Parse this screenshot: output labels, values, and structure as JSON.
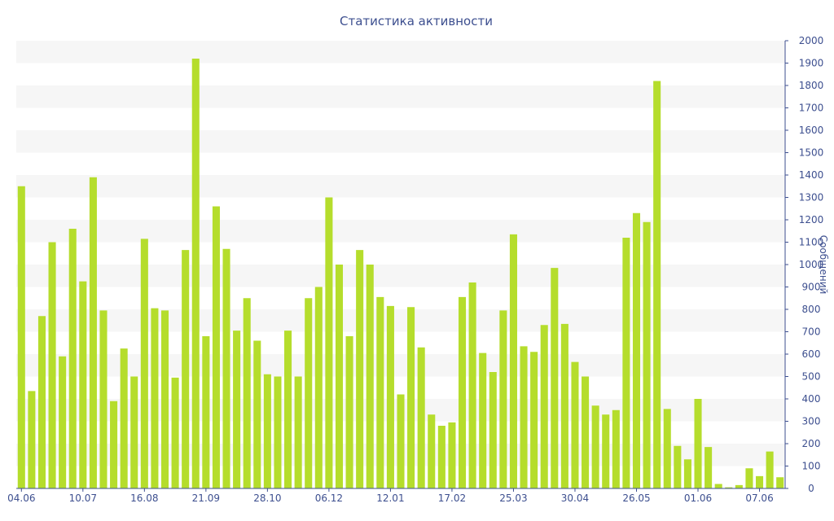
{
  "colors": {
    "bar": "#b5dd2c",
    "band": "#f6f6f6",
    "axis": "#3d4f8f",
    "text": "#3d4f8f"
  },
  "chart_data": {
    "type": "bar",
    "title": "Статистика активности",
    "xlabel": "",
    "ylabel": "Сообщений",
    "ylim": [
      0,
      2000
    ],
    "y_ticks": [
      0,
      100,
      200,
      300,
      400,
      500,
      600,
      700,
      800,
      900,
      1000,
      1100,
      1200,
      1300,
      1400,
      1500,
      1600,
      1700,
      1800,
      1900,
      2000
    ],
    "y_axis_side": "right",
    "grid": "alternating horizontal bands",
    "x_tick_labels": [
      {
        "index": 0,
        "label": "04.06"
      },
      {
        "index": 6,
        "label": "10.07"
      },
      {
        "index": 12,
        "label": "16.08"
      },
      {
        "index": 18,
        "label": "21.09"
      },
      {
        "index": 24,
        "label": "28.10"
      },
      {
        "index": 30,
        "label": "06.12"
      },
      {
        "index": 36,
        "label": "12.01"
      },
      {
        "index": 42,
        "label": "17.02"
      },
      {
        "index": 48,
        "label": "25.03"
      },
      {
        "index": 54,
        "label": "30.04"
      },
      {
        "index": 60,
        "label": "26.05"
      },
      {
        "index": 66,
        "label": "01.06"
      },
      {
        "index": 72,
        "label": "07.06"
      }
    ],
    "values": [
      1350,
      435,
      770,
      1100,
      590,
      1160,
      925,
      1390,
      795,
      390,
      625,
      500,
      1115,
      805,
      795,
      495,
      1065,
      1920,
      680,
      1260,
      1070,
      705,
      850,
      660,
      510,
      500,
      705,
      500,
      850,
      900,
      1300,
      1000,
      680,
      1065,
      1000,
      855,
      815,
      420,
      810,
      630,
      330,
      280,
      295,
      855,
      920,
      605,
      520,
      795,
      1135,
      635,
      610,
      730,
      985,
      735,
      565,
      500,
      370,
      330,
      350,
      1120,
      1230,
      1190,
      1820,
      355,
      190,
      130,
      400,
      185,
      20,
      5,
      15,
      90,
      55,
      165,
      50
    ]
  }
}
